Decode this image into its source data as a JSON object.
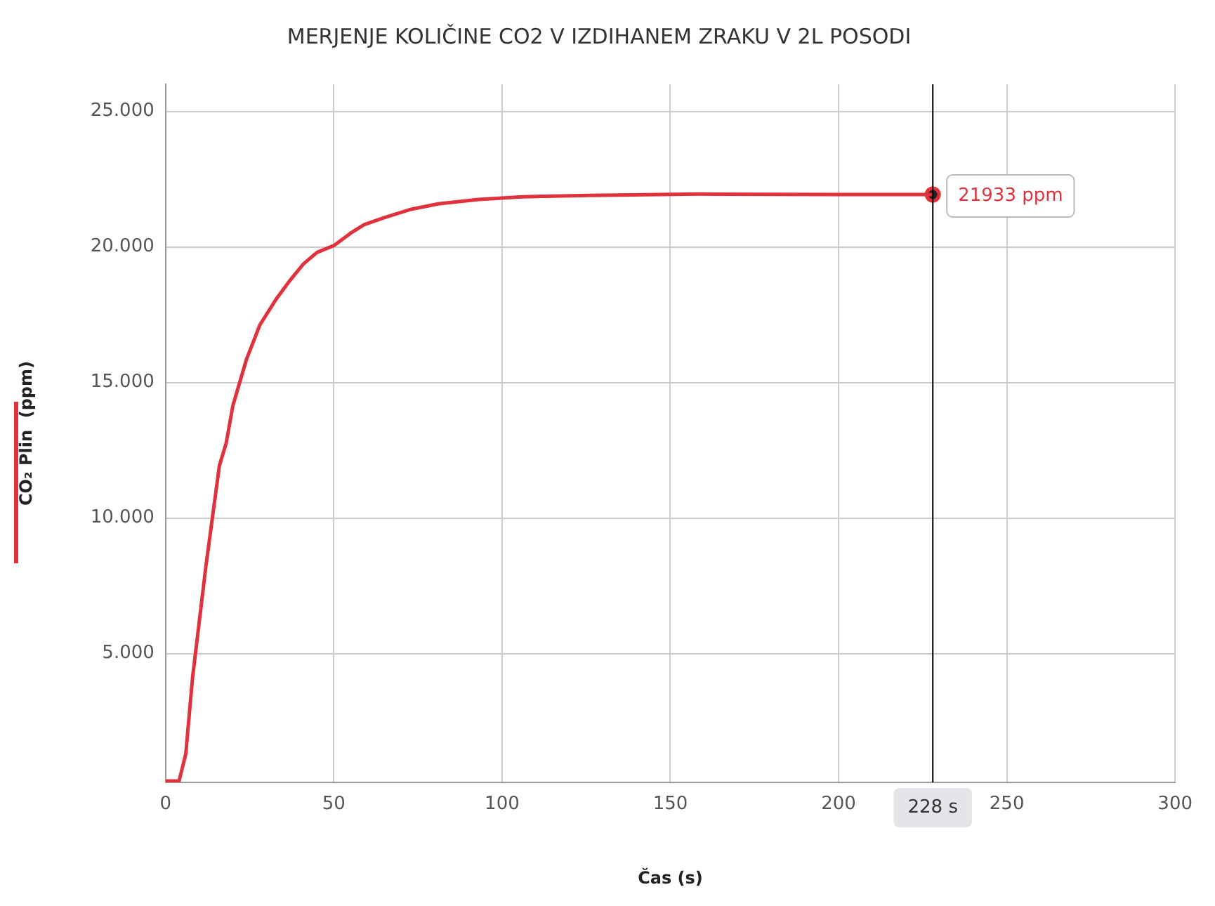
{
  "chart_data": {
    "type": "line",
    "title": "MERJENJE KOLIČINE CO2 V IZDIHANEM ZRAKU V 2L POSODI",
    "xlabel": "Čas (s)",
    "ylabel": "CO₂ Plin  (ppm)",
    "series": [
      {
        "type": "line",
        "color": "#e0323c",
        "marker": "none",
        "x": [
          0,
          4,
          6,
          8,
          12,
          16,
          18,
          20,
          24,
          28,
          33,
          37,
          41,
          45,
          50,
          55,
          59,
          65,
          73,
          81,
          93,
          106,
          126,
          159,
          199,
          224,
          228
        ],
        "values": [
          300,
          300,
          1300,
          4100,
          8240,
          11940,
          12760,
          14150,
          15840,
          17120,
          18100,
          18770,
          19380,
          19800,
          20050,
          20510,
          20820,
          21080,
          21390,
          21590,
          21750,
          21850,
          21900,
          21950,
          21930,
          21930,
          21930
        ]
      },
      {
        "type": "scatter",
        "color": "#222222",
        "marker": "circle",
        "x": [
          228
        ],
        "values": [
          21933
        ]
      }
    ],
    "xlim": [
      0,
      300
    ],
    "xticks": [
      0,
      50,
      100,
      150,
      200,
      250,
      300
    ],
    "ylim": [
      250,
      26000
    ],
    "yticks": [
      {
        "value": 5000,
        "label": "5.000"
      },
      {
        "value": 10000,
        "label": "10.000"
      },
      {
        "value": 15000,
        "label": "15.000"
      },
      {
        "value": 20000,
        "label": "20.000"
      },
      {
        "value": 25000,
        "label": "25.000"
      }
    ],
    "grid": true,
    "line_style": "solid",
    "ref_lines": [
      {
        "axis": "x",
        "value": 228,
        "label": "228 s",
        "color": "#000000"
      }
    ],
    "annotations": [
      {
        "text": "21933 ppm",
        "x": 228,
        "y": 21933
      }
    ]
  }
}
